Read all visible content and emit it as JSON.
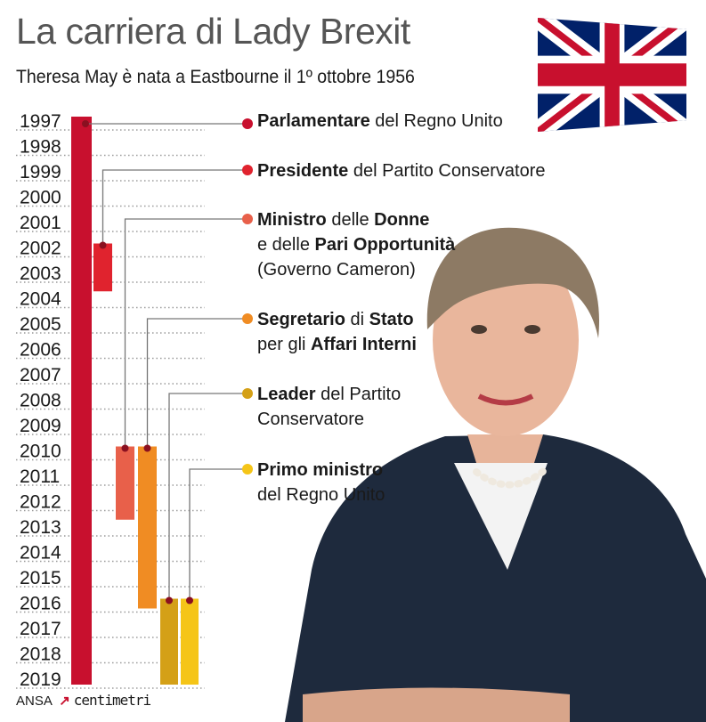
{
  "header": {
    "title": "La carriera di Lady Brexit",
    "subtitle": "Theresa May è nata a Eastbourne il 1º ottobre 1956"
  },
  "footer": {
    "source": "ANSA",
    "brand": "centimetri"
  },
  "colors": {
    "grid": "#9a9a9a",
    "flag_blue": "#012169",
    "flag_red": "#c8102e"
  },
  "chart_data": {
    "type": "timeline",
    "y_axis": {
      "range": [
        1997,
        2019
      ],
      "ticks": [
        "1997",
        "1998",
        "1999",
        "2000",
        "2001",
        "2002",
        "2003",
        "2004",
        "2005",
        "2006",
        "2007",
        "2008",
        "2009",
        "2010",
        "2011",
        "2012",
        "2013",
        "2014",
        "2015",
        "2016",
        "2017",
        "2018",
        "2019"
      ]
    },
    "grid": true,
    "roles": [
      {
        "start": 1997,
        "end": 2019,
        "color": "#c8102e",
        "lines": [
          [
            {
              "t": "Parlamentare",
              "b": true
            },
            {
              "t": " del Regno Unito",
              "b": false
            }
          ]
        ]
      },
      {
        "start": 2002,
        "end": 2003.5,
        "color": "#e0232e",
        "lines": [
          [
            {
              "t": "Presidente",
              "b": true
            },
            {
              "t": " del Partito Conservatore",
              "b": false
            }
          ]
        ]
      },
      {
        "start": 2010,
        "end": 2012.5,
        "color": "#e8604a",
        "lines": [
          [
            {
              "t": "Ministro",
              "b": true
            },
            {
              "t": " delle ",
              "b": false
            },
            {
              "t": "Donne",
              "b": true
            }
          ],
          [
            {
              "t": "e delle ",
              "b": false
            },
            {
              "t": "Pari Opportunità",
              "b": true
            }
          ],
          [
            {
              "t": "(Governo Cameron)",
              "b": false
            }
          ]
        ]
      },
      {
        "start": 2010,
        "end": 2016,
        "color": "#f08c23",
        "lines": [
          [
            {
              "t": "Segretario",
              "b": true
            },
            {
              "t": " di ",
              "b": false
            },
            {
              "t": "Stato",
              "b": true
            }
          ],
          [
            {
              "t": "per gli ",
              "b": false
            },
            {
              "t": "Affari Interni",
              "b": true
            }
          ]
        ]
      },
      {
        "start": 2016,
        "end": 2019,
        "color": "#d4a017",
        "lines": [
          [
            {
              "t": "Leader",
              "b": true
            },
            {
              "t": " del Partito",
              "b": false
            }
          ],
          [
            {
              "t": "Conservatore",
              "b": false
            }
          ]
        ]
      },
      {
        "start": 2016,
        "end": 2019,
        "color": "#f5c518",
        "lines": [
          [
            {
              "t": "Primo ministro",
              "b": true
            }
          ],
          [
            {
              "t": "del Regno Unito",
              "b": false
            }
          ]
        ]
      }
    ]
  }
}
